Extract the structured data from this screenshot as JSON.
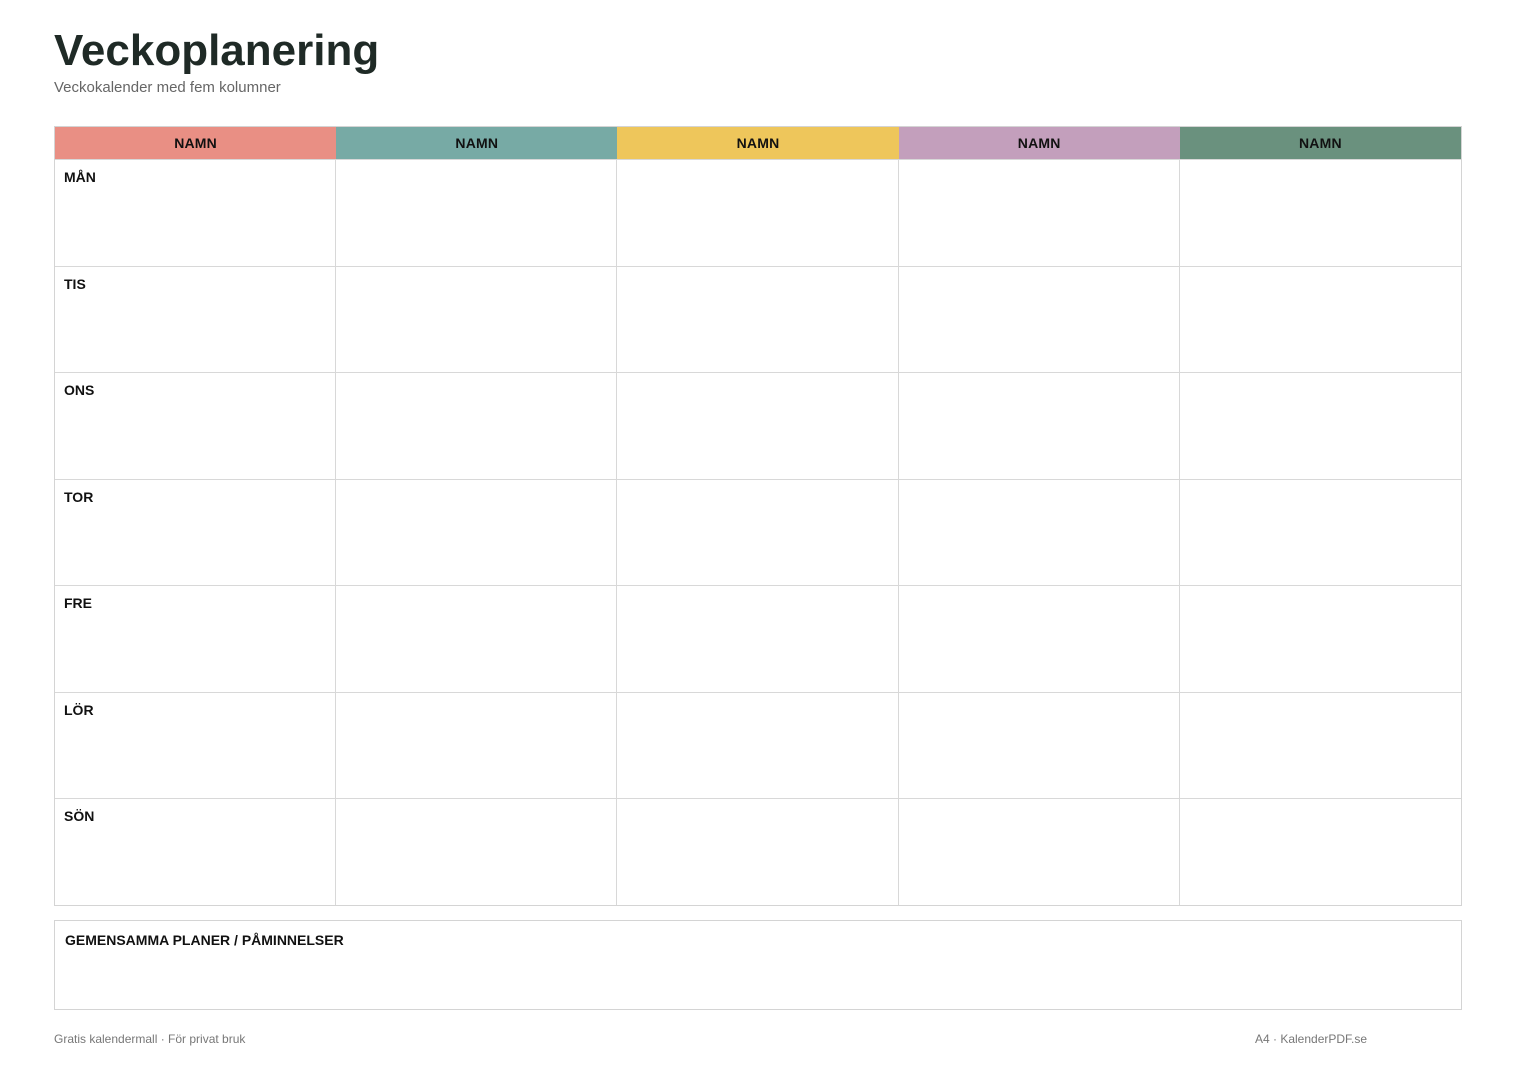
{
  "header": {
    "title": "Veckoplanering",
    "subtitle": "Veckokalender med fem kolumner"
  },
  "columns": [
    {
      "label": "NAMN",
      "color": "#e98f84"
    },
    {
      "label": "NAMN",
      "color": "#77aaa5"
    },
    {
      "label": "NAMN",
      "color": "#eec65b"
    },
    {
      "label": "NAMN",
      "color": "#c39fbc"
    },
    {
      "label": "NAMN",
      "color": "#6a917e"
    }
  ],
  "days": [
    "MÅN",
    "TIS",
    "ONS",
    "TOR",
    "FRE",
    "LÖR",
    "SÖN"
  ],
  "notes": {
    "label": "GEMENSAMMA PLANER / PÅMINNELSER"
  },
  "footer": {
    "left": "Gratis kalendermall · För privat bruk",
    "right": "A4 · KalenderPDF.se"
  }
}
